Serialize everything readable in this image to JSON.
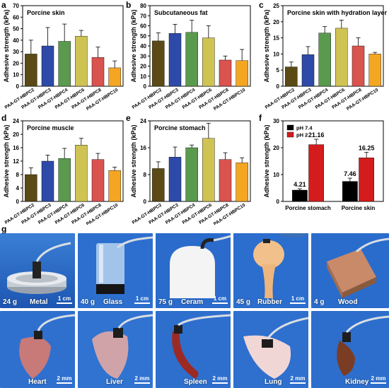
{
  "panel_letters": [
    "a",
    "b",
    "c",
    "d",
    "e",
    "f",
    "g"
  ],
  "colors": {
    "series": [
      "#5b4a16",
      "#2e4aa8",
      "#5a9a4e",
      "#cfc354",
      "#d9534f",
      "#f4a623"
    ],
    "ph74": "#000000",
    "ph2": "#d41c1c"
  },
  "chart_data": [
    {
      "type": "bar",
      "title": "Porcine skin",
      "ylabel": "Adhesive strength (kPa)",
      "categories": [
        "PAA-GT-HBPC2",
        "PAA-GT-HBPC3",
        "PAA-GT-HBPC4",
        "PAA-GT-HBPC6",
        "PAA-GT-HBPC8",
        "PAA-GT-HBPC10"
      ],
      "category_subscripts": [
        "2",
        "3",
        "4",
        "6",
        "8",
        "10"
      ],
      "values": [
        28,
        35,
        39,
        43.5,
        25,
        16
      ],
      "errors": [
        12,
        16,
        15,
        5,
        9,
        6
      ],
      "ylim": [
        0,
        70
      ],
      "yticks": [
        0,
        10,
        20,
        30,
        40,
        50,
        60,
        70
      ]
    },
    {
      "type": "bar",
      "title": "Subcutaneous fat",
      "ylabel": "Adhesive strength (kPa)",
      "categories": [
        "PAA-GT-HBPC2",
        "PAA-GT-HBPC3",
        "PAA-GT-HBPC4",
        "PAA-GT-HBPC6",
        "PAA-GT-HBPC8",
        "PAA-GT-HBPC10"
      ],
      "category_subscripts": [
        "2",
        "3",
        "4",
        "6",
        "8",
        "10"
      ],
      "values": [
        45,
        52.5,
        53.5,
        48,
        26,
        25.5
      ],
      "errors": [
        8,
        9,
        12,
        12,
        4,
        11
      ],
      "ylim": [
        0,
        80
      ],
      "yticks": [
        0,
        10,
        20,
        30,
        40,
        50,
        60,
        70,
        80
      ]
    },
    {
      "type": "bar",
      "title": "Porcine skin with hydration layer",
      "ylabel": "Adhesive strength (kPa)",
      "categories": [
        "PAA-GT-HBPC2",
        "PAA-GT-HBPC3",
        "PAA-GT-HBPC4",
        "PAA-GT-HBPC6",
        "PAA-GT-HBPC8",
        "PAA-GT-HBPC10"
      ],
      "category_subscripts": [
        "2",
        "3",
        "4",
        "6",
        "8",
        "10"
      ],
      "values": [
        6,
        9.8,
        16.5,
        18,
        12.5,
        10
      ],
      "errors": [
        1.5,
        2.5,
        2,
        2.5,
        2.5,
        0.5
      ],
      "ylim": [
        0,
        25
      ],
      "yticks": [
        0,
        5,
        10,
        15,
        20,
        25
      ]
    },
    {
      "type": "bar",
      "title": "Porcine muscle",
      "ylabel": "Adhesive strength (kPa)",
      "categories": [
        "PAA-GT-HBPC2",
        "PAA-GT-HBPC3",
        "PAA-GT-HBPC4",
        "PAA-GT-HBPC6",
        "PAA-GT-HBPC8",
        "PAA-GT-HBPC10"
      ],
      "category_subscripts": [
        "2",
        "3",
        "4",
        "6",
        "8",
        "10"
      ],
      "values": [
        8,
        12,
        12.8,
        16.8,
        12.5,
        9.2
      ],
      "errors": [
        2,
        1.8,
        3,
        2,
        1.8,
        1
      ],
      "ylim": [
        0,
        24
      ],
      "yticks": [
        0,
        4,
        8,
        12,
        16,
        20,
        24
      ]
    },
    {
      "type": "bar",
      "title": "Porcine stomach",
      "ylabel": "Adhesive strength (kPa)",
      "categories": [
        "PAA-GT-HBPC2",
        "PAA-GT-HBPC3",
        "PAA-GT-HBPC4",
        "PAA-GT-HBPC6",
        "PAA-GT-HBPC8",
        "PAA-GT-HBPC10"
      ],
      "category_subscripts": [
        "2",
        "3",
        "4",
        "6",
        "8",
        "10"
      ],
      "values": [
        9.8,
        13.2,
        16,
        18.8,
        12.5,
        11.5
      ],
      "errors": [
        2,
        3,
        0.8,
        4.5,
        2,
        1.5
      ],
      "ylim": [
        0,
        24
      ],
      "yticks": [
        0,
        8,
        16,
        24
      ]
    },
    {
      "type": "bar",
      "ylabel": "Adhesive strength (kPa)",
      "categories": [
        "Porcine stomach",
        "Porcine skin"
      ],
      "series": [
        {
          "name": "pH 7.4",
          "values": [
            4.21,
            7.46
          ],
          "errors": [
            0.5,
            1.2
          ],
          "labels": [
            "4.21",
            "7.46"
          ]
        },
        {
          "name": "pH 2",
          "values": [
            21.16,
            16.25
          ],
          "errors": [
            2,
            2
          ],
          "labels": [
            "21.16",
            "16.25"
          ]
        }
      ],
      "ylim": [
        0,
        30
      ],
      "yticks": [
        0,
        10,
        20,
        30
      ],
      "legend": "top-left"
    }
  ],
  "photos": [
    {
      "mass": "24 g",
      "label": "Metal",
      "scale": "1 cm"
    },
    {
      "mass": "40 g",
      "label": "Glass",
      "scale": "1 cm"
    },
    {
      "mass": "75 g",
      "label": "Ceram",
      "scale": "1 cm"
    },
    {
      "mass": "45 g",
      "label": "Rubber",
      "scale": "1 cm"
    },
    {
      "mass": "4 g",
      "label": "Wood",
      "scale": ""
    },
    {
      "mass": "",
      "label": "Heart",
      "scale": "2 mm"
    },
    {
      "mass": "",
      "label": "Liver",
      "scale": "2 mm"
    },
    {
      "mass": "",
      "label": "Spleen",
      "scale": "2 mm"
    },
    {
      "mass": "",
      "label": "Lung",
      "scale": "2 mm"
    },
    {
      "mass": "",
      "label": "Kidney",
      "scale": "2 mm"
    }
  ]
}
